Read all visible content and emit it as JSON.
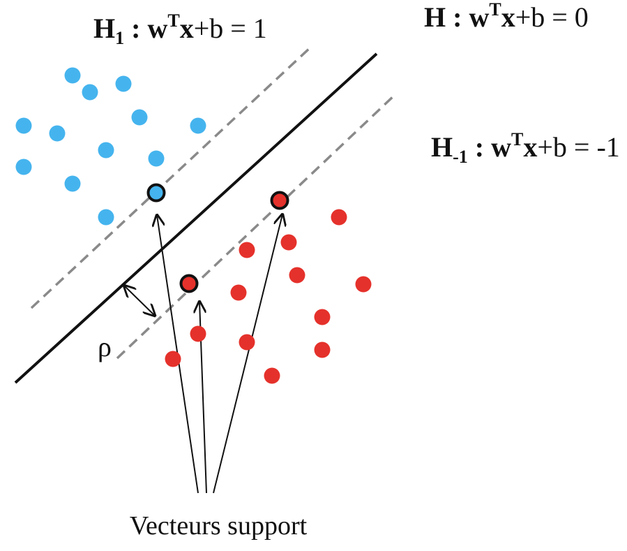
{
  "labels": {
    "h1": {
      "name": "H",
      "sub": "1",
      "sep": " : ",
      "w": "w",
      "sup": "T",
      "x": "x",
      "rest": "+b = 1"
    },
    "h0": {
      "name": "H",
      "sep": " : ",
      "w": "w",
      "sup": "T",
      "x": "x",
      "rest": "+b = 0"
    },
    "hm1": {
      "name": "H",
      "sub": "-1",
      "sep": " : ",
      "w": "w",
      "sup": "T",
      "x": "x",
      "rest": "+b = -1"
    },
    "margin": "ρ",
    "caption": "Vecteurs support"
  },
  "colors": {
    "class_positive": "#45b4ee",
    "class_negative": "#e5312b",
    "hyperplane": "#111111",
    "margin_lines": "#8a8a8a",
    "support_outline": "#111111"
  }
}
